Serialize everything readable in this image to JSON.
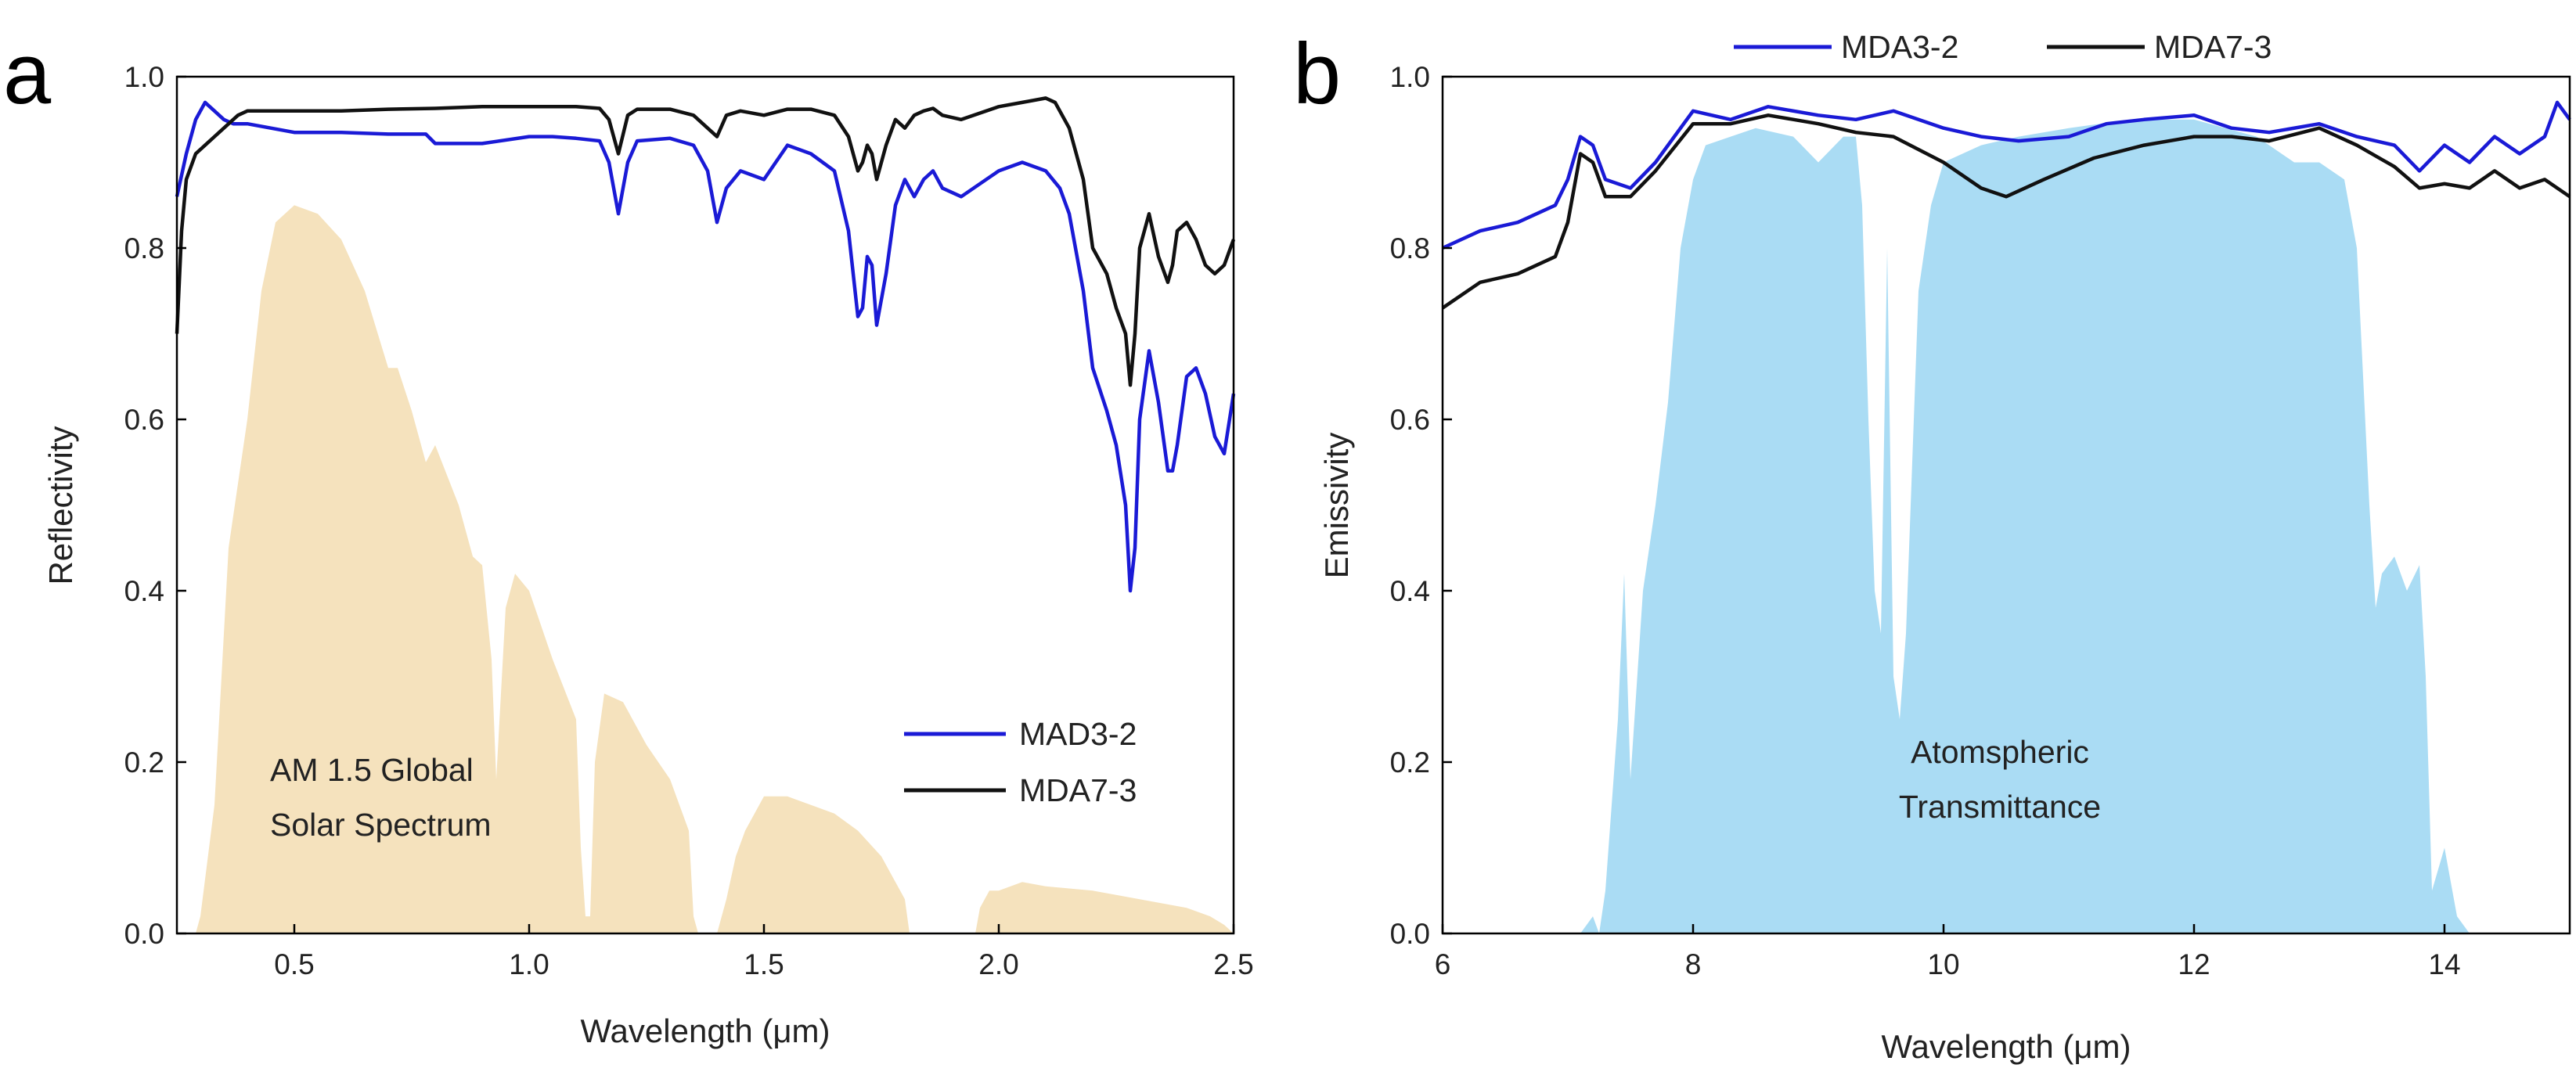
{
  "chart_data": [
    {
      "panel": "a",
      "type": "line",
      "xlabel": "Wavelength (μm)",
      "ylabel": "Reflectivity",
      "xlim": [
        0.25,
        2.5
      ],
      "ylim": [
        0.0,
        1.0
      ],
      "xticks": [
        0.5,
        1.0,
        1.5,
        2.0,
        2.5
      ],
      "xtick_labels": [
        "0.5",
        "1.0",
        "1.5",
        "2.0",
        "2.5"
      ],
      "yticks": [
        0.0,
        0.2,
        0.4,
        0.6,
        0.8,
        1.0
      ],
      "ytick_labels": [
        "0.0",
        "0.2",
        "0.4",
        "0.6",
        "0.8",
        "1.0"
      ],
      "legend": {
        "location": "lower-right",
        "entries": [
          "MAD3-2",
          "MDA7-3"
        ]
      },
      "annotation": [
        "AM 1.5 Global",
        "Solar Spectrum"
      ],
      "background_area": {
        "name": "AM 1.5 Global Solar Spectrum",
        "color": "#f5e2bd",
        "x": [
          0.29,
          0.3,
          0.33,
          0.36,
          0.4,
          0.43,
          0.46,
          0.5,
          0.55,
          0.6,
          0.65,
          0.7,
          0.72,
          0.75,
          0.78,
          0.8,
          0.85,
          0.88,
          0.9,
          0.92,
          0.93,
          0.94,
          0.95,
          0.97,
          1.0,
          1.05,
          1.1,
          1.11,
          1.12,
          1.13,
          1.14,
          1.16,
          1.2,
          1.25,
          1.3,
          1.34,
          1.35,
          1.36,
          1.38,
          1.4,
          1.42,
          1.44,
          1.46,
          1.5,
          1.55,
          1.6,
          1.65,
          1.7,
          1.75,
          1.8,
          1.81,
          1.85,
          1.95,
          1.96,
          1.98,
          2.0,
          2.05,
          2.1,
          2.2,
          2.3,
          2.4,
          2.45,
          2.48,
          2.5
        ],
        "values": [
          0.0,
          0.02,
          0.15,
          0.45,
          0.6,
          0.75,
          0.83,
          0.85,
          0.84,
          0.81,
          0.75,
          0.66,
          0.66,
          0.61,
          0.55,
          0.57,
          0.5,
          0.44,
          0.43,
          0.32,
          0.18,
          0.28,
          0.38,
          0.42,
          0.4,
          0.32,
          0.25,
          0.1,
          0.02,
          0.02,
          0.2,
          0.28,
          0.27,
          0.22,
          0.18,
          0.12,
          0.02,
          0.0,
          0.0,
          0.0,
          0.04,
          0.09,
          0.12,
          0.16,
          0.16,
          0.15,
          0.14,
          0.12,
          0.09,
          0.04,
          0.0,
          0.0,
          0.0,
          0.03,
          0.05,
          0.05,
          0.06,
          0.055,
          0.05,
          0.04,
          0.03,
          0.02,
          0.01,
          0.0
        ]
      },
      "series": [
        {
          "name": "MAD3-2",
          "color": "#1a1ad6",
          "x": [
            0.25,
            0.27,
            0.29,
            0.31,
            0.33,
            0.35,
            0.37,
            0.4,
            0.45,
            0.5,
            0.6,
            0.7,
            0.78,
            0.8,
            0.9,
            1.0,
            1.05,
            1.1,
            1.15,
            1.17,
            1.19,
            1.21,
            1.23,
            1.3,
            1.35,
            1.38,
            1.4,
            1.42,
            1.45,
            1.5,
            1.55,
            1.6,
            1.65,
            1.68,
            1.7,
            1.71,
            1.72,
            1.73,
            1.74,
            1.76,
            1.78,
            1.8,
            1.82,
            1.84,
            1.86,
            1.88,
            1.92,
            2.0,
            2.05,
            2.1,
            2.13,
            2.15,
            2.18,
            2.2,
            2.23,
            2.25,
            2.27,
            2.28,
            2.29,
            2.3,
            2.32,
            2.34,
            2.36,
            2.37,
            2.38,
            2.4,
            2.42,
            2.44,
            2.46,
            2.48,
            2.5
          ],
          "values": [
            0.86,
            0.91,
            0.95,
            0.97,
            0.96,
            0.95,
            0.945,
            0.945,
            0.94,
            0.935,
            0.935,
            0.933,
            0.933,
            0.922,
            0.922,
            0.93,
            0.93,
            0.928,
            0.925,
            0.9,
            0.84,
            0.9,
            0.925,
            0.928,
            0.92,
            0.89,
            0.83,
            0.87,
            0.89,
            0.88,
            0.92,
            0.91,
            0.89,
            0.82,
            0.72,
            0.73,
            0.79,
            0.78,
            0.71,
            0.77,
            0.85,
            0.88,
            0.86,
            0.88,
            0.89,
            0.87,
            0.86,
            0.89,
            0.9,
            0.89,
            0.87,
            0.84,
            0.75,
            0.66,
            0.61,
            0.57,
            0.5,
            0.4,
            0.45,
            0.6,
            0.68,
            0.62,
            0.54,
            0.54,
            0.57,
            0.65,
            0.66,
            0.63,
            0.58,
            0.56,
            0.63
          ]
        },
        {
          "name": "MDA7-3",
          "color": "#111111",
          "x": [
            0.25,
            0.26,
            0.27,
            0.29,
            0.31,
            0.33,
            0.35,
            0.38,
            0.4,
            0.45,
            0.5,
            0.6,
            0.7,
            0.8,
            0.9,
            1.0,
            1.1,
            1.15,
            1.17,
            1.19,
            1.21,
            1.23,
            1.3,
            1.35,
            1.38,
            1.4,
            1.42,
            1.45,
            1.5,
            1.55,
            1.6,
            1.65,
            1.68,
            1.7,
            1.71,
            1.72,
            1.73,
            1.74,
            1.76,
            1.78,
            1.8,
            1.82,
            1.84,
            1.86,
            1.88,
            1.92,
            2.0,
            2.05,
            2.1,
            2.12,
            2.15,
            2.18,
            2.2,
            2.23,
            2.25,
            2.27,
            2.28,
            2.29,
            2.3,
            2.32,
            2.34,
            2.36,
            2.37,
            2.38,
            2.4,
            2.42,
            2.44,
            2.46,
            2.48,
            2.5
          ],
          "values": [
            0.7,
            0.82,
            0.88,
            0.91,
            0.92,
            0.93,
            0.94,
            0.955,
            0.96,
            0.96,
            0.96,
            0.96,
            0.962,
            0.963,
            0.965,
            0.965,
            0.965,
            0.963,
            0.95,
            0.91,
            0.955,
            0.962,
            0.962,
            0.955,
            0.94,
            0.93,
            0.955,
            0.96,
            0.955,
            0.962,
            0.962,
            0.955,
            0.93,
            0.89,
            0.9,
            0.92,
            0.91,
            0.88,
            0.92,
            0.95,
            0.94,
            0.955,
            0.96,
            0.963,
            0.955,
            0.95,
            0.965,
            0.97,
            0.975,
            0.97,
            0.94,
            0.88,
            0.8,
            0.77,
            0.73,
            0.7,
            0.64,
            0.7,
            0.8,
            0.84,
            0.79,
            0.76,
            0.78,
            0.82,
            0.83,
            0.81,
            0.78,
            0.77,
            0.78,
            0.81
          ]
        }
      ]
    },
    {
      "panel": "b",
      "type": "line",
      "xlabel": "Wavelength (μm)",
      "ylabel": "Emissivity",
      "xlim": [
        6,
        15
      ],
      "ylim": [
        0.0,
        1.0
      ],
      "xticks": [
        6,
        8,
        10,
        12,
        14
      ],
      "xtick_labels": [
        "6",
        "8",
        "10",
        "12",
        "14"
      ],
      "yticks": [
        0.0,
        0.2,
        0.4,
        0.6,
        0.8,
        1.0
      ],
      "ytick_labels": [
        "0.0",
        "0.2",
        "0.4",
        "0.6",
        "0.8",
        "1.0"
      ],
      "legend": {
        "location": "top-outside",
        "entries": [
          "MDA3-2",
          "MDA7-3"
        ]
      },
      "annotation": [
        "Atomspheric",
        "Transmittance"
      ],
      "background_area": {
        "name": "Atomspheric Transmittance",
        "color": "#aadcf4",
        "x": [
          6.9,
          7.0,
          7.1,
          7.2,
          7.25,
          7.3,
          7.4,
          7.45,
          7.5,
          7.6,
          7.7,
          7.8,
          7.9,
          8.0,
          8.1,
          8.3,
          8.5,
          8.8,
          9.0,
          9.2,
          9.3,
          9.35,
          9.4,
          9.45,
          9.5,
          9.55,
          9.6,
          9.65,
          9.7,
          9.75,
          9.8,
          9.9,
          10.0,
          10.3,
          10.6,
          11.0,
          11.5,
          12.0,
          12.5,
          12.8,
          13.0,
          13.2,
          13.3,
          13.4,
          13.45,
          13.5,
          13.6,
          13.7,
          13.8,
          13.85,
          13.9,
          14.0,
          14.1,
          14.2,
          14.3
        ],
        "values": [
          0.0,
          0.0,
          0.0,
          0.02,
          0.0,
          0.05,
          0.25,
          0.42,
          0.18,
          0.4,
          0.5,
          0.62,
          0.8,
          0.88,
          0.92,
          0.93,
          0.94,
          0.93,
          0.9,
          0.93,
          0.93,
          0.85,
          0.6,
          0.4,
          0.35,
          0.8,
          0.3,
          0.25,
          0.35,
          0.55,
          0.75,
          0.85,
          0.9,
          0.92,
          0.93,
          0.94,
          0.95,
          0.95,
          0.93,
          0.9,
          0.9,
          0.88,
          0.8,
          0.5,
          0.38,
          0.42,
          0.44,
          0.4,
          0.43,
          0.3,
          0.05,
          0.1,
          0.02,
          0.0,
          0.0
        ]
      },
      "series": [
        {
          "name": "MDA3-2",
          "color": "#1a1ad6",
          "x": [
            6.0,
            6.3,
            6.6,
            6.9,
            7.0,
            7.1,
            7.2,
            7.3,
            7.5,
            7.7,
            8.0,
            8.3,
            8.6,
            9.0,
            9.3,
            9.6,
            10.0,
            10.3,
            10.6,
            11.0,
            11.3,
            11.6,
            12.0,
            12.3,
            12.6,
            13.0,
            13.3,
            13.6,
            13.8,
            14.0,
            14.2,
            14.4,
            14.6,
            14.8,
            14.9,
            15.0
          ],
          "values": [
            0.8,
            0.82,
            0.83,
            0.85,
            0.88,
            0.93,
            0.92,
            0.88,
            0.87,
            0.9,
            0.96,
            0.95,
            0.965,
            0.955,
            0.95,
            0.96,
            0.94,
            0.93,
            0.925,
            0.93,
            0.945,
            0.95,
            0.955,
            0.94,
            0.935,
            0.945,
            0.93,
            0.92,
            0.89,
            0.92,
            0.9,
            0.93,
            0.91,
            0.93,
            0.97,
            0.95
          ]
        },
        {
          "name": "MDA7-3",
          "color": "#111111",
          "x": [
            6.0,
            6.3,
            6.6,
            6.9,
            7.0,
            7.1,
            7.2,
            7.3,
            7.5,
            7.7,
            8.0,
            8.3,
            8.6,
            9.0,
            9.3,
            9.6,
            10.0,
            10.3,
            10.5,
            10.8,
            11.2,
            11.6,
            12.0,
            12.3,
            12.6,
            13.0,
            13.3,
            13.6,
            13.8,
            14.0,
            14.2,
            14.4,
            14.6,
            14.8,
            15.0
          ],
          "values": [
            0.73,
            0.76,
            0.77,
            0.79,
            0.83,
            0.91,
            0.9,
            0.86,
            0.86,
            0.89,
            0.945,
            0.945,
            0.955,
            0.945,
            0.935,
            0.93,
            0.9,
            0.87,
            0.86,
            0.88,
            0.905,
            0.92,
            0.93,
            0.93,
            0.925,
            0.94,
            0.92,
            0.895,
            0.87,
            0.875,
            0.87,
            0.89,
            0.87,
            0.88,
            0.86
          ]
        }
      ]
    }
  ],
  "labels": {
    "panel_a": "a",
    "panel_b": "b"
  }
}
